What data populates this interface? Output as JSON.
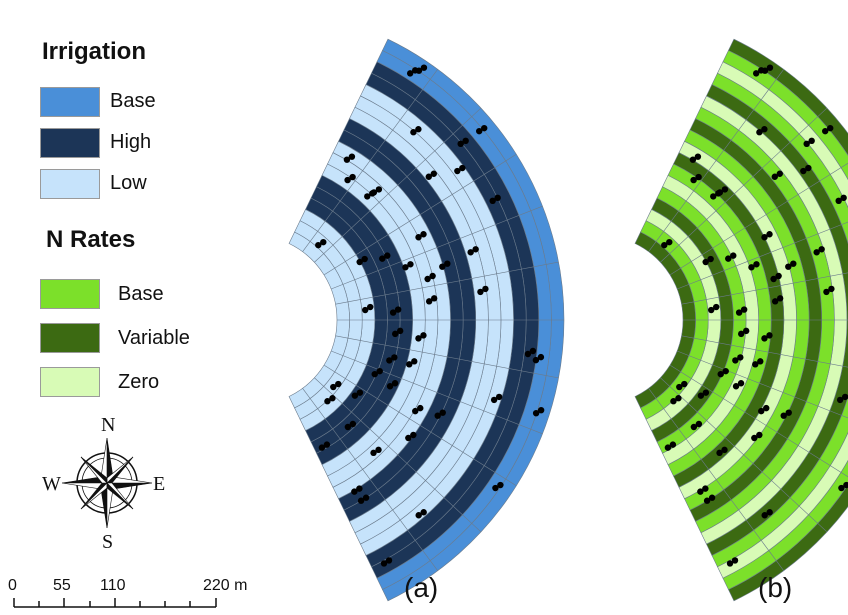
{
  "legend": {
    "irrigation": {
      "title": "Irrigation",
      "items": [
        {
          "label": "Base",
          "color": "#4a8fd8"
        },
        {
          "label": "High",
          "color": "#1c3557"
        },
        {
          "label": "Low",
          "color": "#c6e3fb"
        }
      ]
    },
    "n_rates": {
      "title": "N Rates",
      "items": [
        {
          "label": "Base",
          "color": "#7ce02a"
        },
        {
          "label": "Variable",
          "color": "#3c6a12"
        },
        {
          "label": "Zero",
          "color": "#d8fbb6"
        }
      ]
    }
  },
  "compass": {
    "n": "N",
    "s": "S",
    "e": "E",
    "w": "W"
  },
  "scale_bar": {
    "labels": [
      "0",
      "55",
      "110",
      "220 m"
    ]
  },
  "panels": [
    {
      "label": "(a)",
      "map": "irrigation"
    },
    {
      "label": "(b)",
      "map": "n_rates"
    }
  ],
  "irrigation_ring_pattern": [
    "Base",
    "Base",
    "High",
    "High",
    "Low",
    "Low",
    "Low",
    "High",
    "High",
    "Low",
    "Low",
    "Low",
    "High",
    "High",
    "High",
    "Low",
    "Low",
    "Low"
  ],
  "n_rate_ring_pattern": [
    "Variable",
    "Base",
    "Zero",
    "Base",
    "Variable",
    "Zero",
    "Base",
    "Variable",
    "Base",
    "Zero",
    "Variable",
    "Base",
    "Zero",
    "Base",
    "Variable",
    "Zero",
    "Base",
    "Variable"
  ]
}
